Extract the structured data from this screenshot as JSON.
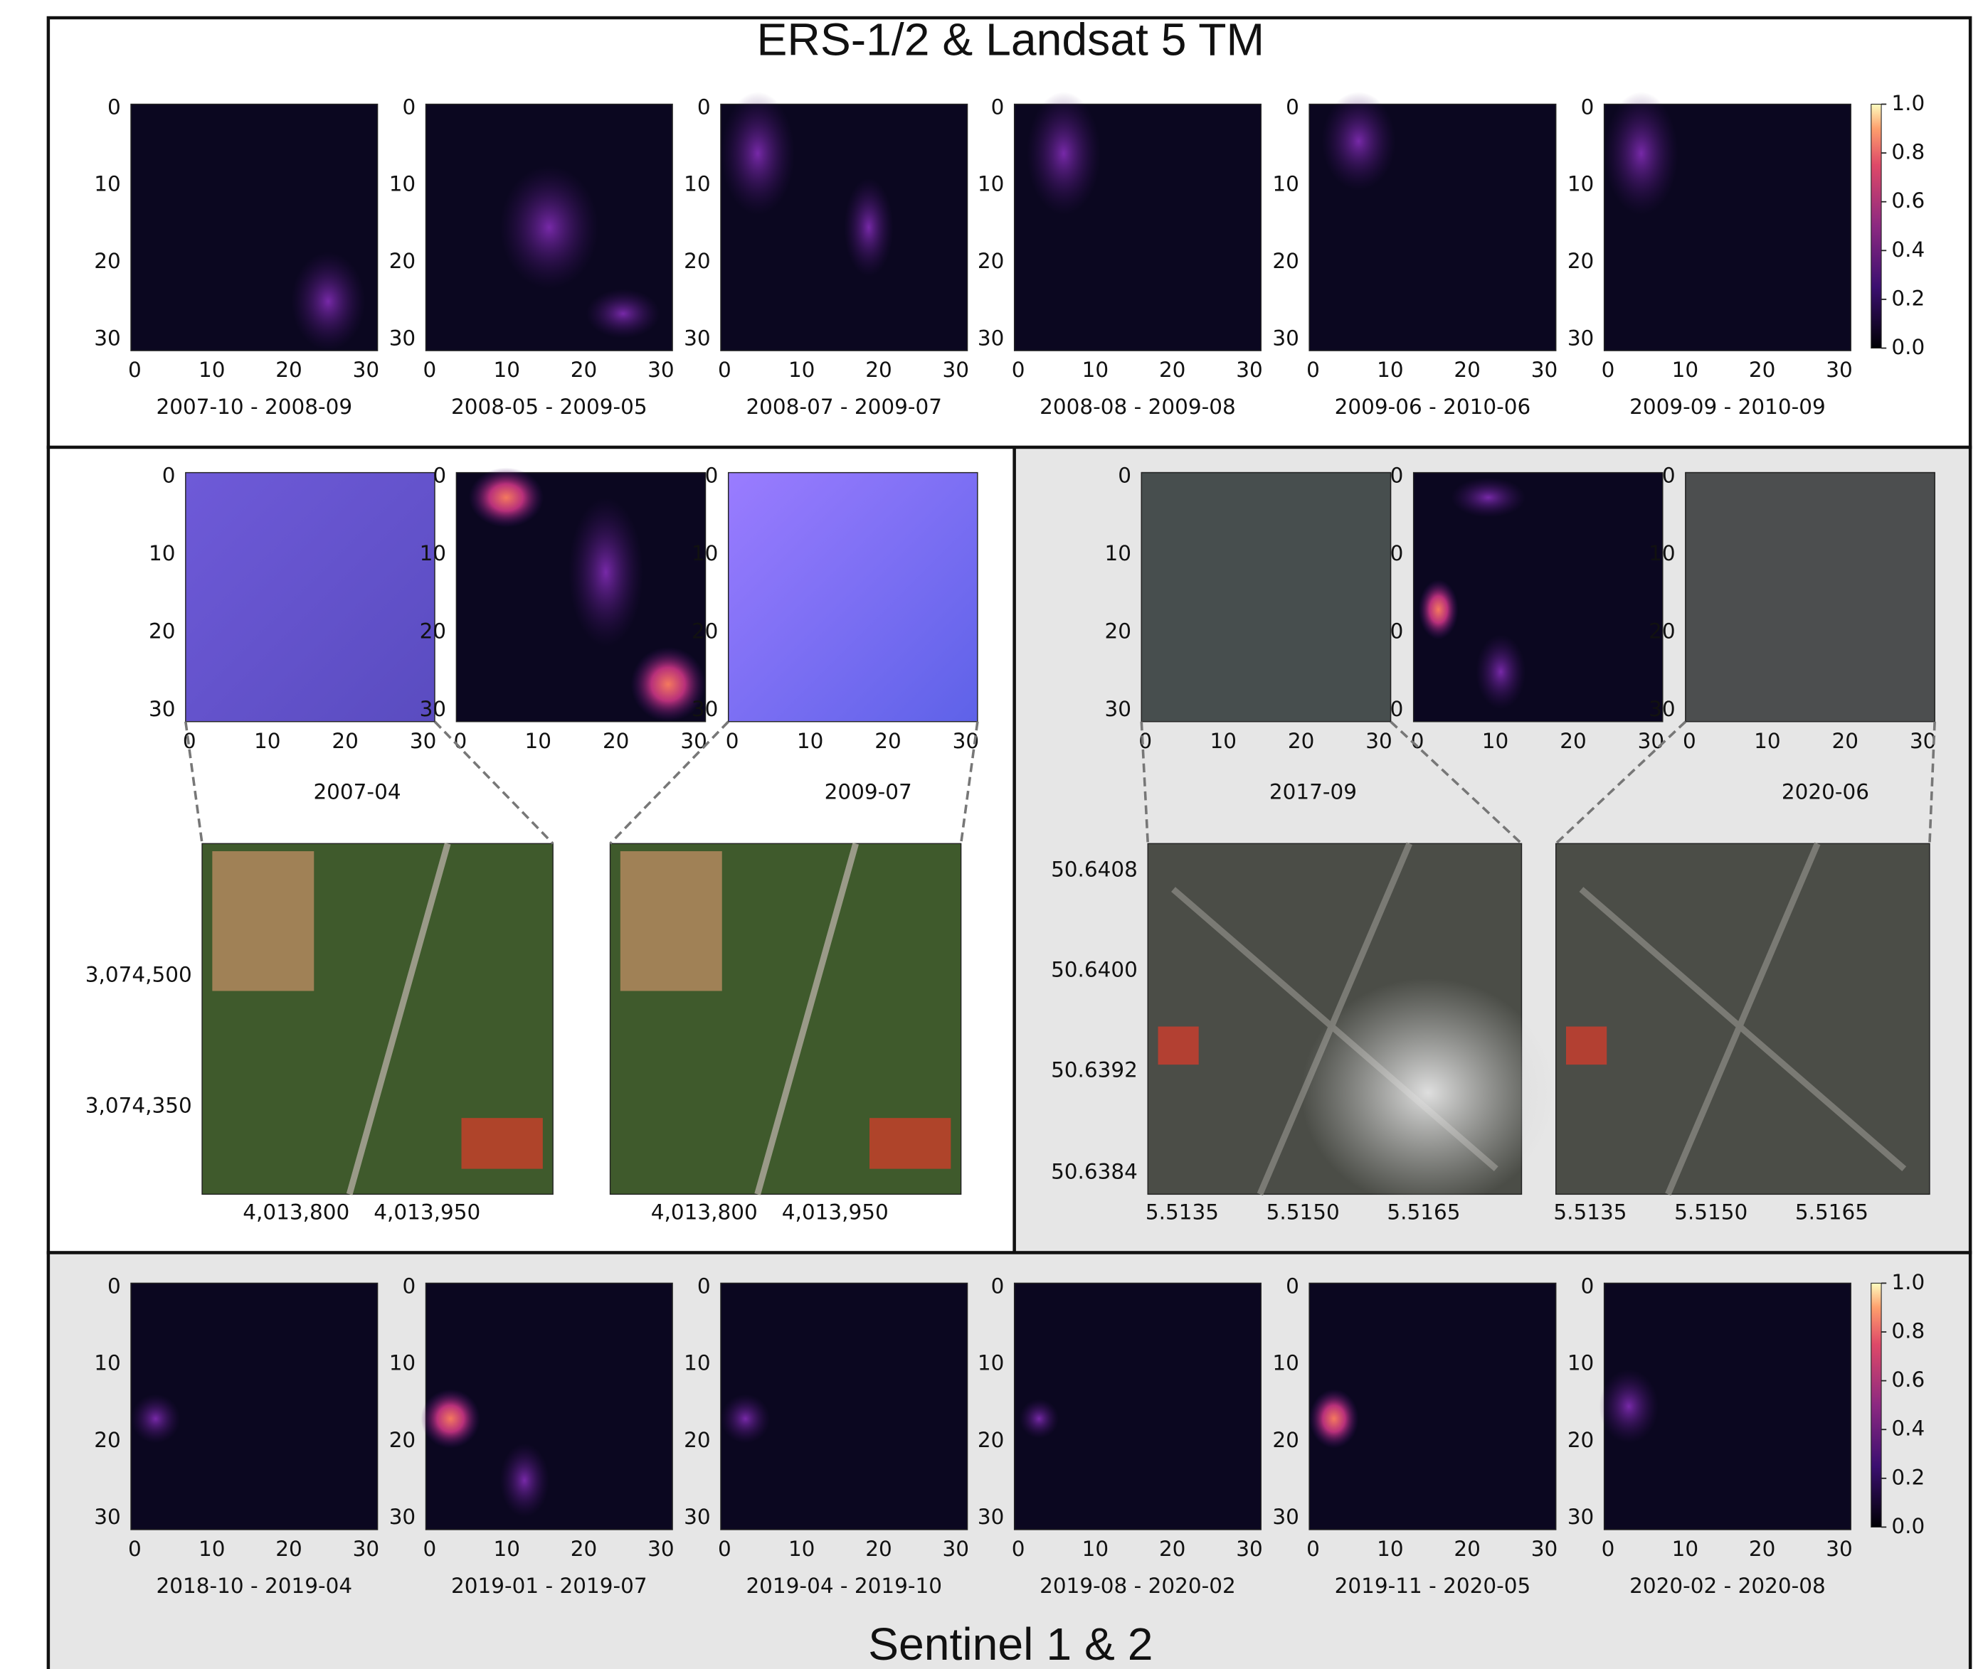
{
  "top_panel": {
    "title": "ERS-1/2 & Landsat 5 TM",
    "maps": [
      "2007-10 - 2008-09",
      "2008-05 - 2009-05",
      "2008-07 - 2009-07",
      "2008-08 - 2009-08",
      "2009-06 - 2010-06",
      "2009-09 - 2010-09"
    ]
  },
  "pixel_ticks": [
    0,
    10,
    20,
    30
  ],
  "colorbar_ticks": [
    "1.0",
    "0.8",
    "0.6",
    "0.4",
    "0.2",
    "0.0"
  ],
  "middle_left": {
    "dates": [
      "2007-04",
      "2009-07"
    ],
    "x_ticks": [
      "4,013,800",
      "4,013,950"
    ],
    "y_ticks": [
      "3,074,500",
      "3,074,350"
    ]
  },
  "middle_right": {
    "dates": [
      "2017-09",
      "2020-06"
    ],
    "x_ticks": [
      "5.5135",
      "5.5150",
      "5.5165"
    ],
    "y_ticks": [
      "50.6408",
      "50.6400",
      "50.6392",
      "50.6384"
    ]
  },
  "bottom_panel": {
    "title": "Sentinel 1 & 2",
    "maps": [
      "2018-10 - 2019-04",
      "2019-01 - 2019-07",
      "2019-04 - 2019-10",
      "2019-08 - 2020-02",
      "2019-11 - 2020-05",
      "2020-02 - 2020-08"
    ]
  }
}
